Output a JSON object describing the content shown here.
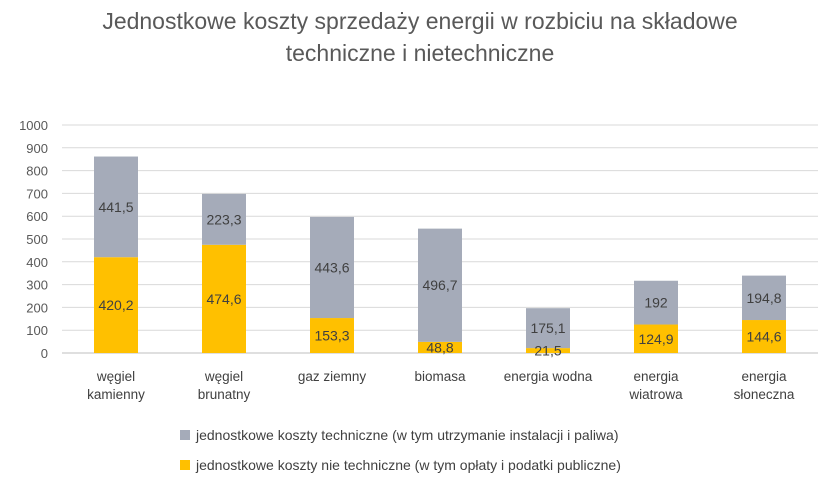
{
  "chart_data": {
    "type": "bar",
    "stacked": true,
    "title": "Jednostkowe koszty sprzedaży energii w rozbiciu na składowe techniczne i nietechniczne",
    "title_lines": [
      "Jednostkowe koszty sprzedaży energii w rozbiciu na składowe",
      "techniczne i nietechniczne"
    ],
    "categories": [
      [
        "węgiel",
        "kamienny"
      ],
      [
        "węgiel",
        "brunatny"
      ],
      [
        "gaz ziemny"
      ],
      [
        "biomasa"
      ],
      [
        "energia wodna"
      ],
      [
        "energia",
        "wiatrowa"
      ],
      [
        "energia",
        "słoneczna"
      ]
    ],
    "series": [
      {
        "name": "jednostkowe koszty nie techniczne (w tym opłaty i podatki publiczne)",
        "color": "#FFC000",
        "values": [
          420.2,
          474.6,
          153.3,
          48.8,
          21.5,
          124.9,
          144.6
        ],
        "labels": [
          "420,2",
          "474,6",
          "153,3",
          "48,8",
          "21,5",
          "124,9",
          "144,6"
        ]
      },
      {
        "name": "jednostkowe koszty techniczne (w tym utrzymanie instalacji i paliwa)",
        "color": "#A5ABB9",
        "values": [
          441.5,
          223.3,
          443.6,
          496.7,
          175.1,
          192,
          194.8
        ],
        "labels": [
          "441,5",
          "223,3",
          "443,6",
          "496,7",
          "175,1",
          "192",
          "194,8"
        ]
      }
    ],
    "ylim": [
      0,
      1000
    ],
    "yticks": [
      "0",
      "100",
      "200",
      "300",
      "400",
      "500",
      "600",
      "700",
      "800",
      "900",
      "1000"
    ],
    "grid": true,
    "legend_position": "bottom",
    "xlabel": "",
    "ylabel": ""
  },
  "legend": [
    {
      "label": "jednostkowe koszty techniczne (w tym utrzymanie instalacji i paliwa)",
      "color": "#A5ABB9"
    },
    {
      "label": "jednostkowe koszty nie techniczne (w tym opłaty i podatki publiczne)",
      "color": "#FFC000"
    }
  ]
}
